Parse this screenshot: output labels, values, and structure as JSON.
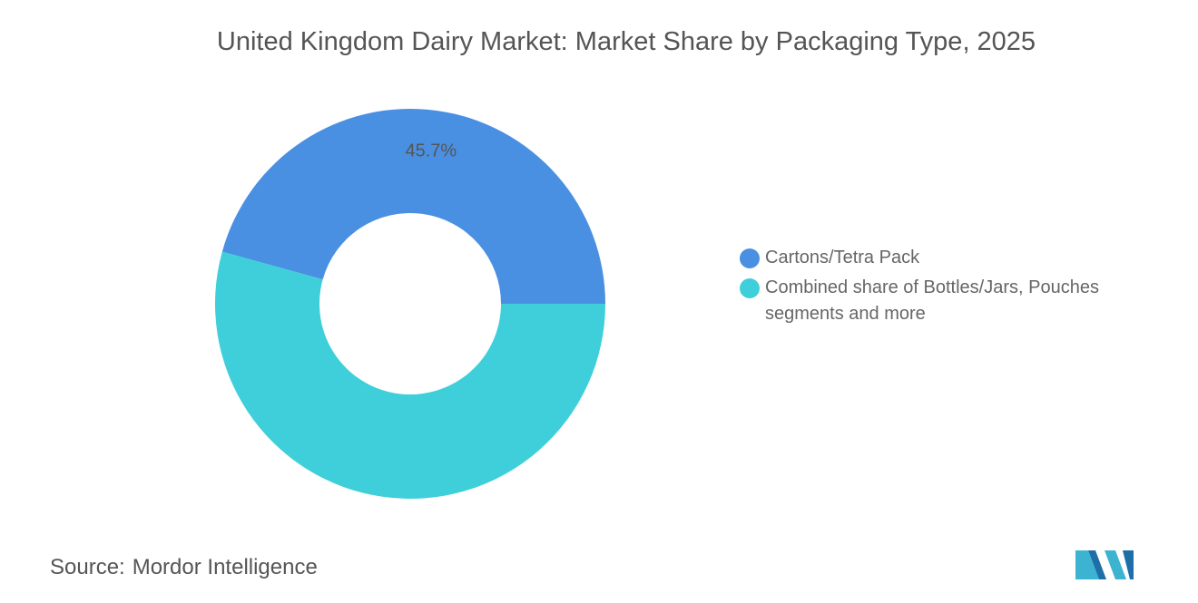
{
  "chart_data": {
    "type": "donut",
    "title": "United Kingdom Dairy Market: Market Share by Packaging Type, 2025",
    "categories": [
      "Cartons/Tetra Pack",
      "Combined share of Bottles/Jars, Pouches segments and more"
    ],
    "values": [
      45.7,
      54.3
    ],
    "value_labels": [
      "45.7%",
      null
    ],
    "colors": [
      "#4a90e2",
      "#3ecfda"
    ],
    "legend": "right",
    "source_label": "Source:",
    "source": "Mordor Intelligence"
  }
}
